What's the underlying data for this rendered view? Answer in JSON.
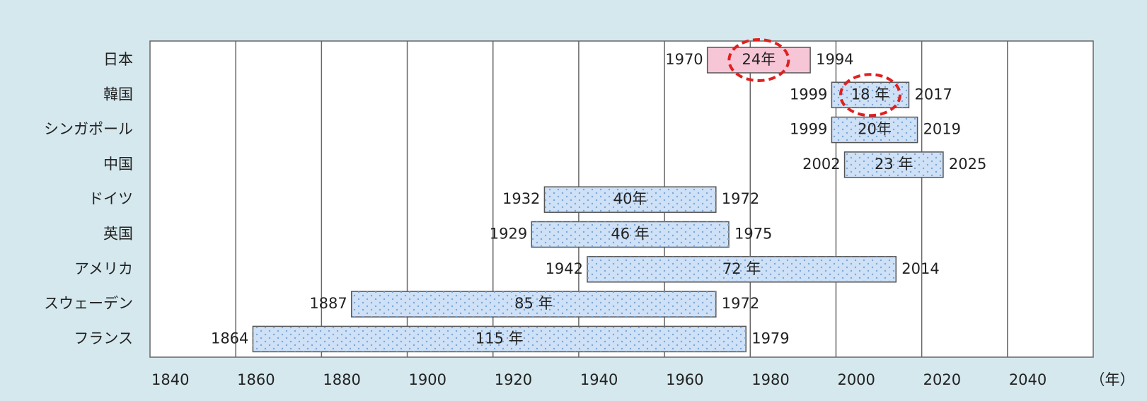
{
  "chart_data": {
    "type": "range",
    "x_label": "（年）",
    "categories": [
      "日本",
      "韓国",
      "シンガポール",
      "中国",
      "ドイツ",
      "英国",
      "アメリカ",
      "スウェーデン",
      "フランス"
    ],
    "start": [
      1970,
      1999,
      1999,
      2002,
      1932,
      1929,
      1942,
      1887,
      1864
    ],
    "end": [
      1994,
      2017,
      2019,
      2025,
      1972,
      1975,
      2014,
      1972,
      1979
    ],
    "durations": [
      24,
      18,
      20,
      23,
      40,
      46,
      72,
      85,
      115
    ],
    "duration_labels": [
      "24年",
      "18 年",
      "20年",
      "23 年",
      "40年",
      "46 年",
      "72 年",
      "85 年",
      "115 年"
    ],
    "colors": [
      "#f6c6d7",
      "#cfe1f6",
      "#cfe1f6",
      "#cfe1f6",
      "#cfe1f6",
      "#cfe1f6",
      "#cfe1f6",
      "#cfe1f6",
      "#cfe1f6"
    ],
    "circled": [
      true,
      true,
      false,
      false,
      false,
      false,
      false,
      false,
      false
    ],
    "circle_color": "#e02020",
    "xlim": [
      1840,
      2060
    ],
    "xticks": [
      1840,
      1860,
      1880,
      1900,
      1920,
      1940,
      1960,
      1980,
      2000,
      2020,
      2040
    ],
    "grid": true
  }
}
